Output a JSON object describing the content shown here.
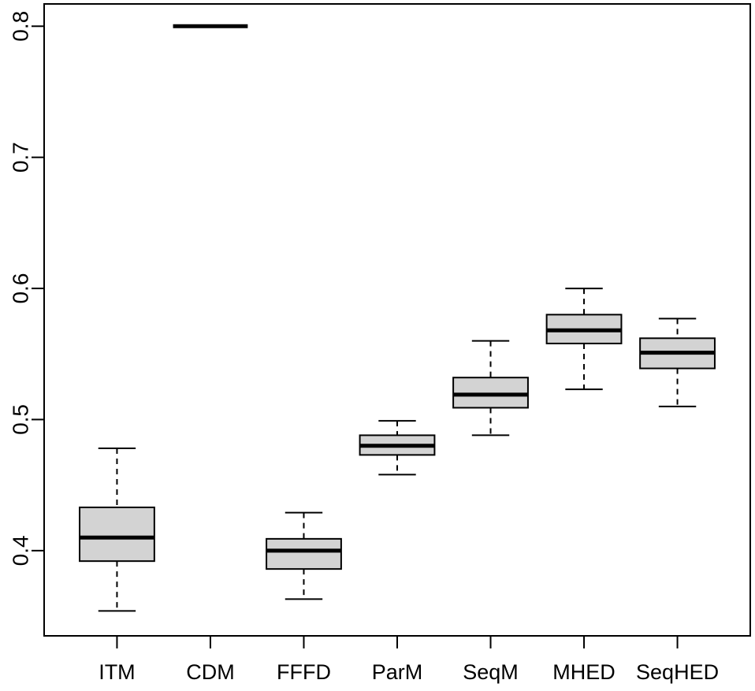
{
  "chart_data": {
    "type": "boxplot",
    "title": "",
    "xlabel": "",
    "ylabel": "",
    "categories": [
      "ITM",
      "CDM",
      "FFFD",
      "ParM",
      "SeqM",
      "MHED",
      "SeqHED"
    ],
    "series": [
      {
        "name": "ITM",
        "whisker_low": 0.354,
        "q1": 0.392,
        "median": 0.41,
        "q3": 0.433,
        "whisker_high": 0.478
      },
      {
        "name": "CDM",
        "whisker_low": 0.8,
        "q1": 0.8,
        "median": 0.8,
        "q3": 0.8,
        "whisker_high": 0.8
      },
      {
        "name": "FFFD",
        "whisker_low": 0.363,
        "q1": 0.386,
        "median": 0.4,
        "q3": 0.409,
        "whisker_high": 0.429
      },
      {
        "name": "ParM",
        "whisker_low": 0.458,
        "q1": 0.473,
        "median": 0.48,
        "q3": 0.488,
        "whisker_high": 0.499
      },
      {
        "name": "SeqM",
        "whisker_low": 0.488,
        "q1": 0.509,
        "median": 0.519,
        "q3": 0.532,
        "whisker_high": 0.56
      },
      {
        "name": "MHED",
        "whisker_low": 0.523,
        "q1": 0.558,
        "median": 0.568,
        "q3": 0.58,
        "whisker_high": 0.6
      },
      {
        "name": "SeqHED",
        "whisker_low": 0.51,
        "q1": 0.539,
        "median": 0.551,
        "q3": 0.562,
        "whisker_high": 0.577
      }
    ],
    "outliers": [],
    "yticks": [
      "0.4",
      "0.5",
      "0.6",
      "0.7",
      "0.8"
    ],
    "ytick_values": [
      0.4,
      0.5,
      0.6,
      0.7,
      0.8
    ],
    "ylim": [
      0.335,
      0.817
    ],
    "xlim": [
      0.22,
      7.78
    ],
    "box_width": 0.8,
    "cap_width": 0.4,
    "grid": false,
    "legend": "none",
    "whisker_style": "dashed",
    "colors": {
      "box_fill": "#d3d3d3",
      "stroke": "#000000",
      "background": "#ffffff"
    }
  }
}
